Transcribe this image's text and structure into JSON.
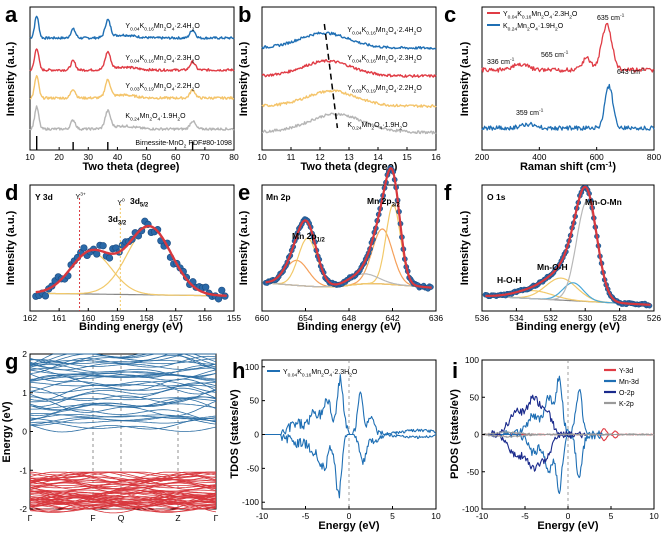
{
  "chart_data": [
    {
      "id": "a",
      "type": "line",
      "xlabel": "Two theta (degree)",
      "ylabel": "Intensity (a.u.)",
      "xlim": [
        10,
        80
      ],
      "xticks": [
        10,
        20,
        30,
        40,
        50,
        60,
        70,
        80
      ],
      "series": [
        {
          "name": "Y0.04K0.16Mn2O4·2.4H2O",
          "label_parts": [
            "Y",
            "0.04",
            "K",
            "0.16",
            "Mn",
            "2",
            "O",
            "4",
            "·2.4H",
            "2",
            "O"
          ],
          "color": "#1f6fb4"
        },
        {
          "name": "Y0.04K0.16Mn2O4·2.3H2O",
          "label_parts": [
            "Y",
            "0.04",
            "K",
            "0.16",
            "Mn",
            "2",
            "O",
            "4",
            "·2.3H",
            "2",
            "O"
          ],
          "color": "#e03c45"
        },
        {
          "name": "Y0.03K0.19Mn2O4·2.2H2O",
          "label_parts": [
            "Y",
            "0.03",
            "K",
            "0.19",
            "Mn",
            "2",
            "O",
            "4",
            "·2.2H",
            "2",
            "O"
          ],
          "color": "#f4c46a"
        },
        {
          "name": "K0.24Mn2O4·1.9H2O",
          "label_parts": [
            "K",
            "0.24",
            "Mn",
            "2",
            "O",
            "4",
            "·1.9H",
            "2",
            "O"
          ],
          "color": "#b5b5b5"
        }
      ],
      "peaks_deg": [
        12.3,
        24.8,
        36.7,
        65.8
      ],
      "reference": {
        "name": "Birnessite-MnO2 PDF#80-1098",
        "label_parts": [
          "Birnessite-MnO",
          "2",
          " PDF#80-1098"
        ],
        "peaks": [
          12.3,
          24.8,
          36.7,
          65.8
        ]
      }
    },
    {
      "id": "b",
      "type": "line",
      "xlabel": "Two theta (degree)",
      "ylabel": "",
      "xlim": [
        10,
        16
      ],
      "xticks": [
        10,
        11,
        12,
        13,
        14,
        15,
        16
      ],
      "series_ref": "a",
      "peak_positions_deg": [
        12.15,
        12.25,
        12.4,
        12.55
      ]
    },
    {
      "id": "c",
      "type": "line",
      "xlabel": "Raman shift (cm-1)",
      "xlabel_parts": [
        "Raman shift (cm",
        "-1",
        ")"
      ],
      "ylabel": "",
      "xlim": [
        200,
        800
      ],
      "xticks": [
        200,
        400,
        600,
        800
      ],
      "series": [
        {
          "name": "Y0.04K0.16Mn2O4·2.3H2O",
          "label_parts": [
            "Y",
            "0.04",
            "K",
            "0.16",
            "Mn",
            "2",
            "O",
            "4",
            "·2.3H",
            "2",
            "O"
          ],
          "color": "#e03c45"
        },
        {
          "name": "K0.24Mn2O4·1.9H2O",
          "label_parts": [
            "K",
            "0.24",
            "Mn",
            "2",
            "O",
            "4",
            "·1.9H",
            "2",
            "O"
          ],
          "color": "#1f6fb4"
        }
      ],
      "annotations": [
        {
          "text": "635 cm-1",
          "parts": [
            "635 cm",
            "-1"
          ]
        },
        {
          "text": "565 cm-1",
          "parts": [
            "565 cm",
            "-1"
          ]
        },
        {
          "text": "336 cm-1",
          "parts": [
            "336 cm",
            "-1"
          ]
        },
        {
          "text": "643 cm-1",
          "parts": [
            "643 cm",
            "-1"
          ]
        },
        {
          "text": "359 cm-1",
          "parts": [
            "359 cm",
            "-1"
          ]
        }
      ]
    },
    {
      "id": "d",
      "type": "scatter",
      "title": "Y 3d",
      "xlabel": "Binding energy (eV)",
      "ylabel": "Intensity (a.u.)",
      "xlim": [
        162,
        155
      ],
      "xticks": [
        162,
        161,
        160,
        159,
        158,
        157,
        156,
        155
      ],
      "components": [
        {
          "name": "3d3/2",
          "parts": [
            "3d",
            "3/2"
          ],
          "center": 159.9
        },
        {
          "name": "3d5/2",
          "parts": [
            "3d",
            "5/2"
          ],
          "center": 157.9
        }
      ],
      "markers": [
        {
          "text": "Y3+",
          "parts": [
            "Y",
            "3+"
          ],
          "x": 160.3
        },
        {
          "text": "Y0",
          "parts": [
            "Y",
            "0"
          ],
          "x": 158.9
        }
      ]
    },
    {
      "id": "e",
      "type": "scatter",
      "title": "Mn 2p",
      "xlabel": "Binding energy (eV)",
      "ylabel": "Intensity (a.u.)",
      "xlim": [
        660,
        636
      ],
      "xticks": [
        660,
        654,
        648,
        642,
        636
      ],
      "components": [
        {
          "name": "Mn 2p1/2",
          "parts": [
            "Mn 2p",
            "1/2"
          ],
          "center": 654.0
        },
        {
          "name": "Mn 2p3/2",
          "parts": [
            "Mn 2p",
            "3/2"
          ],
          "center": 642.3
        }
      ]
    },
    {
      "id": "f",
      "type": "scatter",
      "title": "O 1s",
      "xlabel": "Binding energy (eV)",
      "ylabel": "Intensity (a.u.)",
      "xlim": [
        536,
        526
      ],
      "xticks": [
        536,
        534,
        532,
        530,
        528,
        526
      ],
      "components": [
        {
          "name": "H-O-H",
          "center": 533.0
        },
        {
          "name": "Mn-O-H",
          "center": 531.4
        },
        {
          "name": "Mn-O-Mn",
          "center": 529.9
        }
      ]
    },
    {
      "id": "g",
      "type": "line",
      "ylabel": "Energy (eV)",
      "ylim": [
        -2,
        2
      ],
      "yticks": [
        -2,
        -1,
        0,
        1,
        2
      ],
      "kpoints": [
        "Γ",
        "F",
        "Q",
        "Z",
        "Γ"
      ]
    },
    {
      "id": "h",
      "type": "line",
      "xlabel": "Energy (eV)",
      "ylabel": "TDOS (states/eV)",
      "xlim": [
        -10,
        10
      ],
      "xticks": [
        -10,
        -5,
        0,
        5,
        10
      ],
      "ylim": [
        -110,
        110
      ],
      "yticks": [
        -100,
        -50,
        0,
        50,
        100
      ],
      "series": [
        {
          "name": "Y0.04K0.16Mn2O4·2.3H2O",
          "label_parts": [
            "Y",
            "0.04",
            "K",
            "0.16",
            "Mn",
            "2",
            "O",
            "4",
            "·2.3H",
            "2",
            "O"
          ],
          "color": "#1f6fb4"
        }
      ]
    },
    {
      "id": "i",
      "type": "line",
      "xlabel": "Energy (eV)",
      "ylabel": "PDOS (states/eV)",
      "xlim": [
        -10,
        10
      ],
      "xticks": [
        -10,
        -5,
        0,
        5,
        10
      ],
      "ylim": [
        -100,
        100
      ],
      "yticks": [
        -100,
        -50,
        0,
        50,
        100
      ],
      "series": [
        {
          "name": "Y-3d",
          "color": "#e03c45"
        },
        {
          "name": "Mn-3d",
          "color": "#1f6fb4"
        },
        {
          "name": "O-2p",
          "color": "#1a2a8c"
        },
        {
          "name": "K-2p",
          "color": "#9a9a9a"
        }
      ]
    }
  ]
}
